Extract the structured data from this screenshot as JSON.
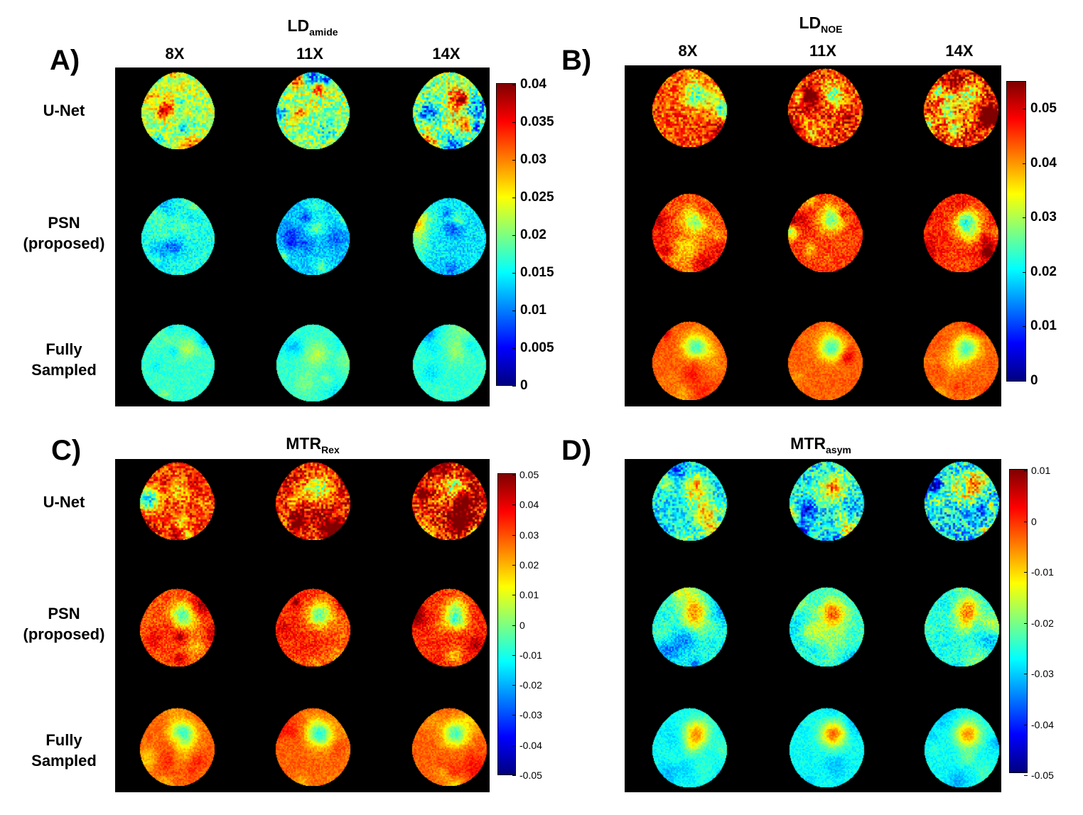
{
  "figure": {
    "column_labels": [
      "8X",
      "11X",
      "14X"
    ],
    "row_labels": [
      {
        "line1": "U-Net",
        "line2": ""
      },
      {
        "line1": "PSN",
        "line2": "(proposed)"
      },
      {
        "line1": "Fully",
        "line2": "Sampled"
      }
    ],
    "panels": [
      {
        "letter": "A)",
        "title_main": "LD",
        "title_sub": "amide",
        "colorbar_ticks": [
          "0.04",
          "0.035",
          "0.03",
          "0.025",
          "0.02",
          "0.015",
          "0.01",
          "0.005",
          "0"
        ],
        "colorbar_range": [
          0,
          0.04
        ],
        "map_levels": [
          [
            0.022,
            0.021,
            0.02
          ],
          [
            0.016,
            0.013,
            0.014
          ],
          [
            0.017,
            0.017,
            0.017
          ]
        ]
      },
      {
        "letter": "B)",
        "title_main": "LD",
        "title_sub": "NOE",
        "colorbar_ticks": [
          "0.05",
          "0.04",
          "0.03",
          "0.02",
          "0.01",
          "0"
        ],
        "colorbar_range": [
          0,
          0.055
        ],
        "map_levels": [
          [
            0.044,
            0.046,
            0.047
          ],
          [
            0.044,
            0.045,
            0.046
          ],
          [
            0.043,
            0.043,
            0.043
          ]
        ]
      },
      {
        "letter": "C)",
        "title_main": "MTR",
        "title_sub": "Rex",
        "colorbar_ticks": [
          "0.05",
          "0.04",
          "0.03",
          "0.02",
          "0.01",
          "0",
          "-0.01",
          "-0.02",
          "-0.03",
          "-0.04",
          "-0.05"
        ],
        "colorbar_range": [
          -0.05,
          0.05
        ],
        "map_levels": [
          [
            0.032,
            0.036,
            0.034
          ],
          [
            0.03,
            0.034,
            0.033
          ],
          [
            0.028,
            0.028,
            0.028
          ]
        ]
      },
      {
        "letter": "D)",
        "title_main": "MTR",
        "title_sub": "asym",
        "colorbar_ticks": [
          "0.01",
          "0",
          "-0.01",
          "-0.02",
          "-0.03",
          "-0.04",
          "-0.05"
        ],
        "colorbar_range": [
          -0.05,
          0.01
        ],
        "map_levels": [
          [
            -0.028,
            -0.027,
            -0.029
          ],
          [
            -0.026,
            -0.024,
            -0.026
          ],
          [
            -0.027,
            -0.027,
            -0.027
          ]
        ]
      }
    ]
  }
}
